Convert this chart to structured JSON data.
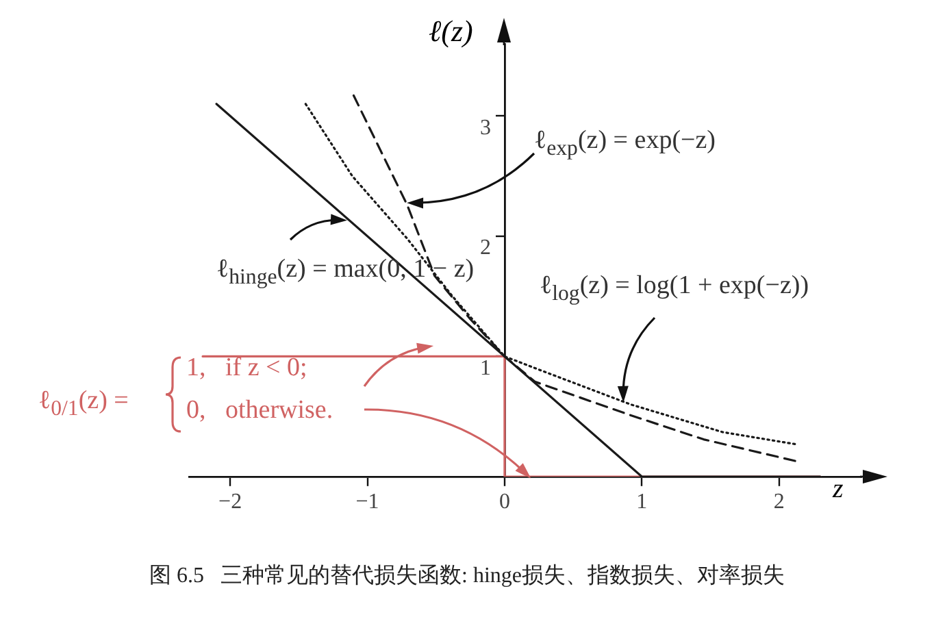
{
  "chart_data": {
    "type": "line",
    "title": "图 6.5   三种常见的替代损失函数: hinge损失、指数损失、对率损失",
    "xlabel": "z",
    "ylabel": "ℓ(z)",
    "xlim": [
      -2.3,
      2.6
    ],
    "ylim": [
      0,
      3.6
    ],
    "xticks": [
      {
        "value": -2,
        "label": "−2"
      },
      {
        "value": -1,
        "label": "−1"
      },
      0,
      1,
      2
    ],
    "yticks": [
      1,
      2,
      3
    ],
    "grid": false,
    "legend": false,
    "marker": "none",
    "series": [
      {
        "color": "#1a1a1a",
        "line_style": "solid",
        "x": [
          -2.1,
          1,
          2.3
        ],
        "values": [
          3.1,
          0,
          0
        ]
      },
      {
        "color": "#1a1a1a",
        "line_style": "dashed",
        "x": [
          -1.1,
          -0.71,
          -0.51,
          -0.25,
          0,
          0.22,
          0.92,
          1.45,
          2.12
        ],
        "values": [
          3.17,
          2.26,
          1.67,
          1.31,
          1,
          0.79,
          0.51,
          0.31,
          0.13
        ]
      },
      {
        "color": "#1a1a1a",
        "line_style": "dotted",
        "x": [
          -1.45,
          -1.11,
          -0.71,
          -0.38,
          0,
          0.25,
          0.92,
          1.59,
          2.12
        ],
        "values": [
          3.1,
          2.5,
          1.98,
          1.5,
          1,
          0.89,
          0.6,
          0.37,
          0.27
        ]
      },
      {
        "color": "#d06262",
        "line_style": "solid",
        "x": [
          -2.2,
          0,
          0,
          2.3
        ],
        "values": [
          1,
          1,
          0,
          0
        ]
      }
    ],
    "annotations": [
      {
        "text": "ℓ$_{exp}$(z) = exp(−z)",
        "x": -0.71,
        "y": 2.26
      },
      {
        "text": "ℓ$_{hinge}$(z) = max(0, 1 − z)",
        "x": -1.15,
        "y": 2.15
      },
      {
        "text": "ℓ$_{log}$(z) = log(1 + exp(−z))",
        "x": 0.85,
        "y": 0.62
      },
      "ℓ$_{0/1}$(z) =",
      "1,   if z < 0;",
      {
        "text": "0,   otherwise.",
        "x": 0.2,
        "y": 0
      }
    ]
  }
}
